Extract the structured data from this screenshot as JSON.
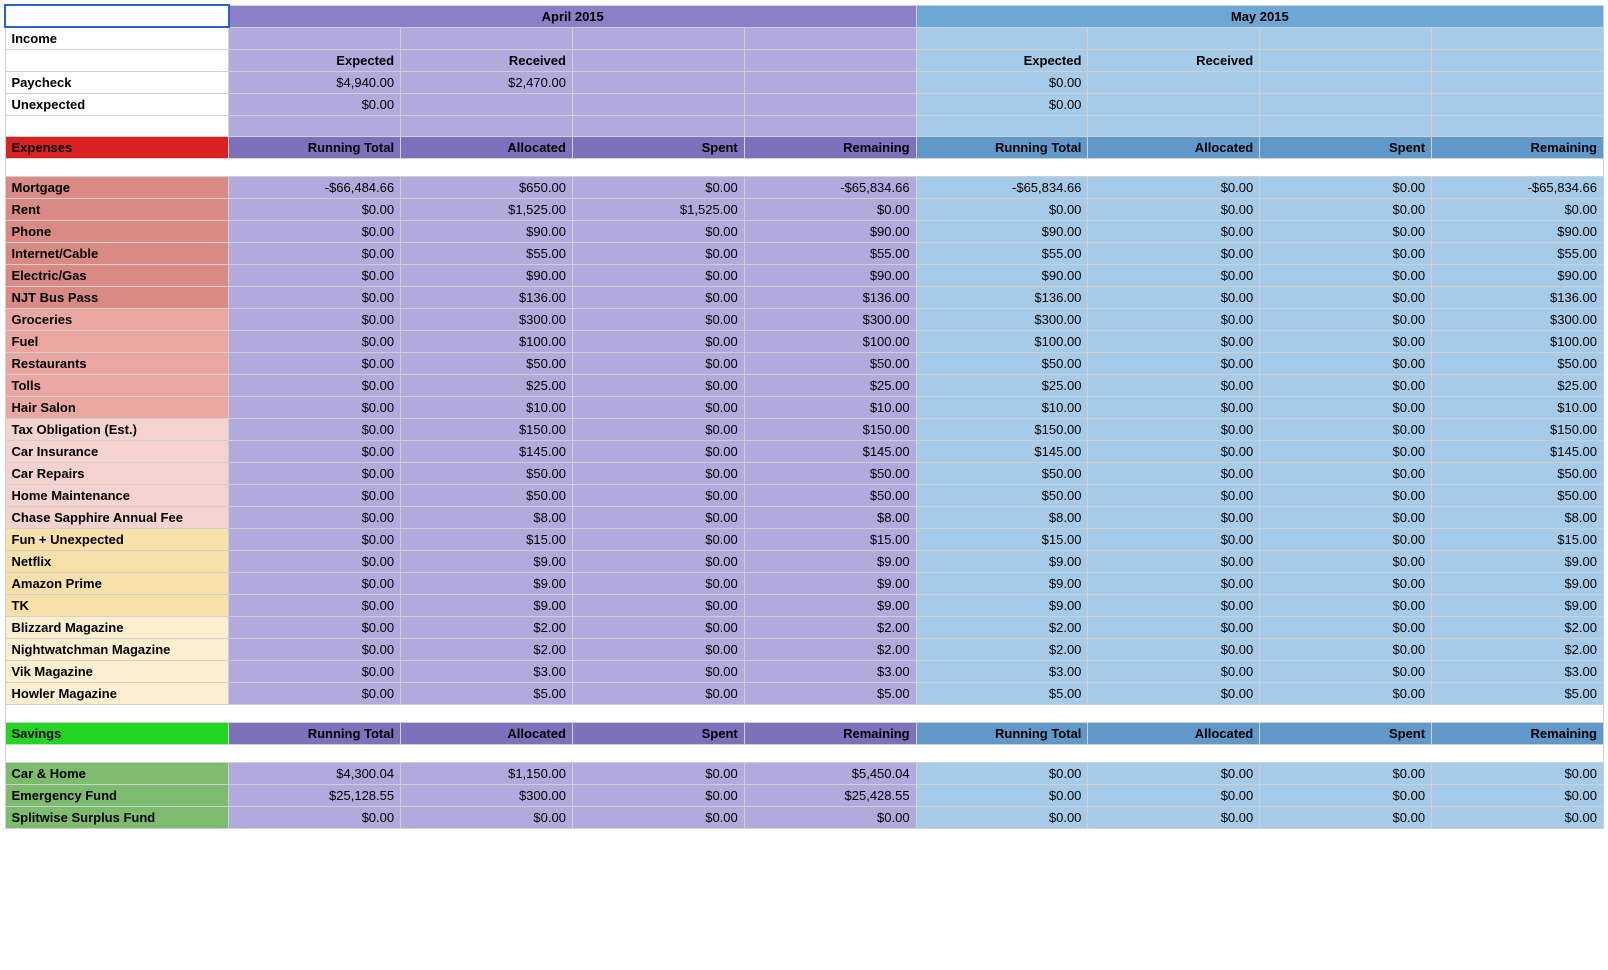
{
  "colors": {
    "month_april_hdr": "#8b80c8",
    "month_may_hdr": "#6ca7d6",
    "april_subhdr": "#7d71bb",
    "may_subhdr": "#5f98c9",
    "april_data": "#b2a9dc",
    "may_data": "#a6cbe8",
    "expenses_label_bg": "#d92323",
    "savings_label_bg": "#22d522",
    "expense_shade_1": "#d98a84",
    "expense_shade_2": "#eaa7a2",
    "expense_shade_3": "#f3d2cf",
    "expense_shade_4": "#f7e0aa",
    "expense_shade_5": "#fcefd0",
    "savings_shade": "#7dbb6f",
    "white": "#ffffff"
  },
  "months": {
    "april": "April 2015",
    "may": "May 2015"
  },
  "income": {
    "section": "Income",
    "hdr_expected": "Expected",
    "hdr_received": "Received",
    "rows": [
      {
        "label": "Paycheck",
        "apr_exp": "$4,940.00",
        "apr_rec": "$2,470.00",
        "may_exp": "$0.00",
        "may_rec": ""
      },
      {
        "label": "Unexpected",
        "apr_exp": "$0.00",
        "apr_rec": "",
        "may_exp": "$0.00",
        "may_rec": ""
      }
    ]
  },
  "cols": {
    "rt": "Running Total",
    "alloc": "Allocated",
    "spent": "Spent",
    "rem": "Remaining"
  },
  "expenses": {
    "section": "Expenses",
    "rows": [
      {
        "shade": "expense_shade_1",
        "label": "Mortgage",
        "apr": [
          "-$66,484.66",
          "$650.00",
          "$0.00",
          "-$65,834.66"
        ],
        "may": [
          "-$65,834.66",
          "$0.00",
          "$0.00",
          "-$65,834.66"
        ]
      },
      {
        "shade": "expense_shade_1",
        "label": "Rent",
        "apr": [
          "$0.00",
          "$1,525.00",
          "$1,525.00",
          "$0.00"
        ],
        "may": [
          "$0.00",
          "$0.00",
          "$0.00",
          "$0.00"
        ]
      },
      {
        "shade": "expense_shade_1",
        "label": "Phone",
        "apr": [
          "$0.00",
          "$90.00",
          "$0.00",
          "$90.00"
        ],
        "may": [
          "$90.00",
          "$0.00",
          "$0.00",
          "$90.00"
        ]
      },
      {
        "shade": "expense_shade_1",
        "label": "Internet/Cable",
        "apr": [
          "$0.00",
          "$55.00",
          "$0.00",
          "$55.00"
        ],
        "may": [
          "$55.00",
          "$0.00",
          "$0.00",
          "$55.00"
        ]
      },
      {
        "shade": "expense_shade_1",
        "label": "Electric/Gas",
        "apr": [
          "$0.00",
          "$90.00",
          "$0.00",
          "$90.00"
        ],
        "may": [
          "$90.00",
          "$0.00",
          "$0.00",
          "$90.00"
        ]
      },
      {
        "shade": "expense_shade_1",
        "label": "NJT Bus Pass",
        "apr": [
          "$0.00",
          "$136.00",
          "$0.00",
          "$136.00"
        ],
        "may": [
          "$136.00",
          "$0.00",
          "$0.00",
          "$136.00"
        ]
      },
      {
        "shade": "expense_shade_2",
        "label": "Groceries",
        "apr": [
          "$0.00",
          "$300.00",
          "$0.00",
          "$300.00"
        ],
        "may": [
          "$300.00",
          "$0.00",
          "$0.00",
          "$300.00"
        ]
      },
      {
        "shade": "expense_shade_2",
        "label": "Fuel",
        "apr": [
          "$0.00",
          "$100.00",
          "$0.00",
          "$100.00"
        ],
        "may": [
          "$100.00",
          "$0.00",
          "$0.00",
          "$100.00"
        ]
      },
      {
        "shade": "expense_shade_2",
        "label": "Restaurants",
        "apr": [
          "$0.00",
          "$50.00",
          "$0.00",
          "$50.00"
        ],
        "may": [
          "$50.00",
          "$0.00",
          "$0.00",
          "$50.00"
        ]
      },
      {
        "shade": "expense_shade_2",
        "label": "Tolls",
        "apr": [
          "$0.00",
          "$25.00",
          "$0.00",
          "$25.00"
        ],
        "may": [
          "$25.00",
          "$0.00",
          "$0.00",
          "$25.00"
        ]
      },
      {
        "shade": "expense_shade_2",
        "label": "Hair Salon",
        "apr": [
          "$0.00",
          "$10.00",
          "$0.00",
          "$10.00"
        ],
        "may": [
          "$10.00",
          "$0.00",
          "$0.00",
          "$10.00"
        ]
      },
      {
        "shade": "expense_shade_3",
        "label": "Tax Obligation (Est.)",
        "apr": [
          "$0.00",
          "$150.00",
          "$0.00",
          "$150.00"
        ],
        "may": [
          "$150.00",
          "$0.00",
          "$0.00",
          "$150.00"
        ]
      },
      {
        "shade": "expense_shade_3",
        "label": "Car Insurance",
        "apr": [
          "$0.00",
          "$145.00",
          "$0.00",
          "$145.00"
        ],
        "may": [
          "$145.00",
          "$0.00",
          "$0.00",
          "$145.00"
        ]
      },
      {
        "shade": "expense_shade_3",
        "label": "Car Repairs",
        "apr": [
          "$0.00",
          "$50.00",
          "$0.00",
          "$50.00"
        ],
        "may": [
          "$50.00",
          "$0.00",
          "$0.00",
          "$50.00"
        ]
      },
      {
        "shade": "expense_shade_3",
        "label": "Home Maintenance",
        "apr": [
          "$0.00",
          "$50.00",
          "$0.00",
          "$50.00"
        ],
        "may": [
          "$50.00",
          "$0.00",
          "$0.00",
          "$50.00"
        ]
      },
      {
        "shade": "expense_shade_3",
        "label": "Chase Sapphire Annual Fee",
        "apr": [
          "$0.00",
          "$8.00",
          "$0.00",
          "$8.00"
        ],
        "may": [
          "$8.00",
          "$0.00",
          "$0.00",
          "$8.00"
        ]
      },
      {
        "shade": "expense_shade_4",
        "label": "Fun + Unexpected",
        "apr": [
          "$0.00",
          "$15.00",
          "$0.00",
          "$15.00"
        ],
        "may": [
          "$15.00",
          "$0.00",
          "$0.00",
          "$15.00"
        ]
      },
      {
        "shade": "expense_shade_4",
        "label": "Netflix",
        "apr": [
          "$0.00",
          "$9.00",
          "$0.00",
          "$9.00"
        ],
        "may": [
          "$9.00",
          "$0.00",
          "$0.00",
          "$9.00"
        ]
      },
      {
        "shade": "expense_shade_4",
        "label": "Amazon Prime",
        "apr": [
          "$0.00",
          "$9.00",
          "$0.00",
          "$9.00"
        ],
        "may": [
          "$9.00",
          "$0.00",
          "$0.00",
          "$9.00"
        ]
      },
      {
        "shade": "expense_shade_4",
        "label": "TK",
        "apr": [
          "$0.00",
          "$9.00",
          "$0.00",
          "$9.00"
        ],
        "may": [
          "$9.00",
          "$0.00",
          "$0.00",
          "$9.00"
        ]
      },
      {
        "shade": "expense_shade_5",
        "label": "Blizzard Magazine",
        "apr": [
          "$0.00",
          "$2.00",
          "$0.00",
          "$2.00"
        ],
        "may": [
          "$2.00",
          "$0.00",
          "$0.00",
          "$2.00"
        ]
      },
      {
        "shade": "expense_shade_5",
        "label": "Nightwatchman Magazine",
        "apr": [
          "$0.00",
          "$2.00",
          "$0.00",
          "$2.00"
        ],
        "may": [
          "$2.00",
          "$0.00",
          "$0.00",
          "$2.00"
        ]
      },
      {
        "shade": "expense_shade_5",
        "label": "Vik Magazine",
        "apr": [
          "$0.00",
          "$3.00",
          "$0.00",
          "$3.00"
        ],
        "may": [
          "$3.00",
          "$0.00",
          "$0.00",
          "$3.00"
        ]
      },
      {
        "shade": "expense_shade_5",
        "label": "Howler Magazine",
        "apr": [
          "$0.00",
          "$5.00",
          "$0.00",
          "$5.00"
        ],
        "may": [
          "$5.00",
          "$0.00",
          "$0.00",
          "$5.00"
        ]
      }
    ]
  },
  "savings": {
    "section": "Savings",
    "rows": [
      {
        "label": "Car & Home",
        "apr": [
          "$4,300.04",
          "$1,150.00",
          "$0.00",
          "$5,450.04"
        ],
        "may": [
          "$0.00",
          "$0.00",
          "$0.00",
          "$0.00"
        ]
      },
      {
        "label": "Emergency Fund",
        "apr": [
          "$25,128.55",
          "$300.00",
          "$0.00",
          "$25,428.55"
        ],
        "may": [
          "$0.00",
          "$0.00",
          "$0.00",
          "$0.00"
        ]
      },
      {
        "label": "Splitwise Surplus Fund",
        "apr": [
          "$0.00",
          "$0.00",
          "$0.00",
          "$0.00"
        ],
        "may": [
          "$0.00",
          "$0.00",
          "$0.00",
          "$0.00"
        ]
      }
    ]
  }
}
